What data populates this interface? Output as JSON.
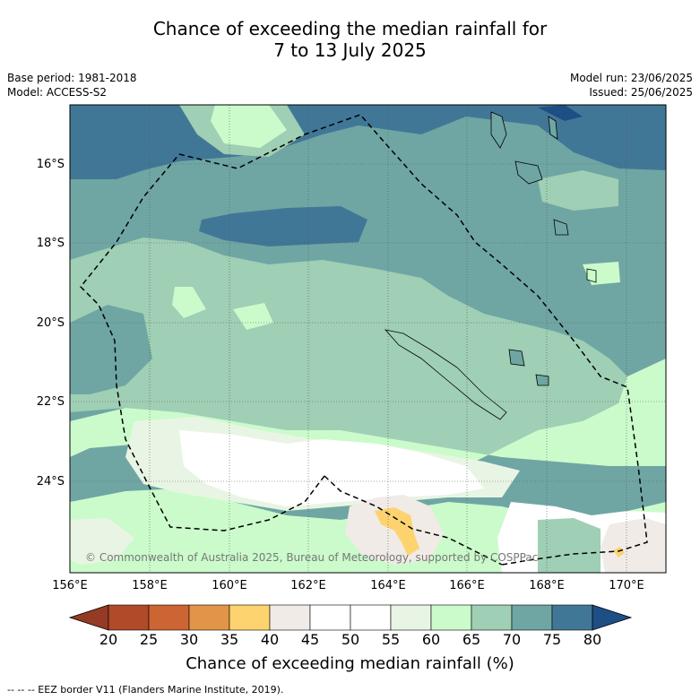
{
  "title": {
    "line1": "Chance of exceeding the median rainfall for",
    "line2": "7 to 13 July 2025"
  },
  "meta": {
    "base_period": "Base period: 1981-2018",
    "model": "Model: ACCESS-S2",
    "model_run": "Model run: 23/06/2025",
    "issued": "Issued: 25/06/2025"
  },
  "map": {
    "lat_labels": [
      "16°S",
      "18°S",
      "20°S",
      "22°S",
      "24°S"
    ],
    "lon_labels": [
      "156°E",
      "158°E",
      "160°E",
      "162°E",
      "164°E",
      "166°E",
      "168°E",
      "170°E"
    ],
    "copyright": "© Commonwealth of Australia 2025, Bureau of Meteorology, supported by COSPPac"
  },
  "colorbar": {
    "ticks": [
      "20",
      "25",
      "30",
      "35",
      "40",
      "45",
      "50",
      "55",
      "60",
      "65",
      "70",
      "75",
      "80"
    ],
    "colors": [
      "#b04a28",
      "#cc6433",
      "#e29548",
      "#fdd36f",
      "#f0ebe6",
      "#ffffff",
      "#ffffff",
      "#e9f5e4",
      "#cbfbcb",
      "#9fcfb4",
      "#6fa6a4",
      "#417796"
    ],
    "low_end_color": "#953a24",
    "high_end_color": "#1d4f85",
    "label": "Chance of exceeding median rainfall (%)"
  },
  "footer": "--  --  -- EEZ border V11 (Flanders Marine Institute, 2019)."
}
